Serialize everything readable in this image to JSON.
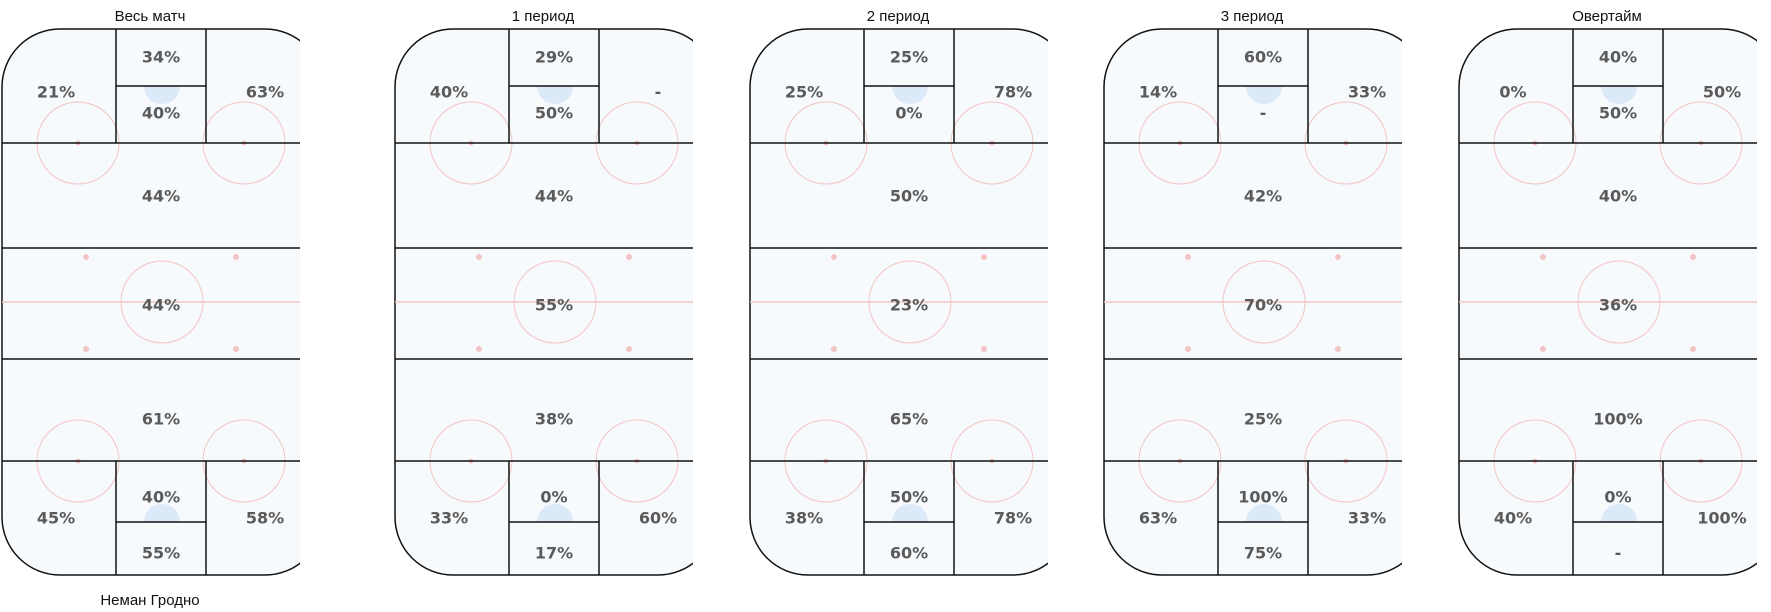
{
  "team": "Неман Гродно",
  "rinks": [
    {
      "title": "Весь матч",
      "top": {
        "left": "21%",
        "upper": "34%",
        "lower": "40%",
        "right": "63%"
      },
      "zones": {
        "offensive": "44%",
        "neutral": "44%",
        "defensive": "61%"
      },
      "bottom": {
        "left": "45%",
        "upper": "40%",
        "lower": "55%",
        "right": "58%"
      }
    },
    {
      "title": "1 период",
      "top": {
        "left": "40%",
        "upper": "29%",
        "lower": "50%",
        "right": "-"
      },
      "zones": {
        "offensive": "44%",
        "neutral": "55%",
        "defensive": "38%"
      },
      "bottom": {
        "left": "33%",
        "upper": "0%",
        "lower": "17%",
        "right": "60%"
      }
    },
    {
      "title": "2 период",
      "top": {
        "left": "25%",
        "upper": "25%",
        "lower": "0%",
        "right": "78%"
      },
      "zones": {
        "offensive": "50%",
        "neutral": "23%",
        "defensive": "65%"
      },
      "bottom": {
        "left": "38%",
        "upper": "50%",
        "lower": "60%",
        "right": "78%"
      }
    },
    {
      "title": "3 период",
      "top": {
        "left": "14%",
        "upper": "60%",
        "lower": "-",
        "right": "33%"
      },
      "zones": {
        "offensive": "42%",
        "neutral": "70%",
        "defensive": "25%"
      },
      "bottom": {
        "left": "63%",
        "upper": "100%",
        "lower": "75%",
        "right": "33%"
      }
    },
    {
      "title": "Овертайм",
      "top": {
        "left": "0%",
        "upper": "40%",
        "lower": "50%",
        "right": "50%"
      },
      "zones": {
        "offensive": "40%",
        "neutral": "36%",
        "defensive": "100%"
      },
      "bottom": {
        "left": "40%",
        "upper": "0%",
        "lower": "-",
        "right": "100%"
      }
    }
  ],
  "colors": {
    "ice": "#f7fafd",
    "line": "#111111",
    "marking": "#f2c4c4",
    "crease": "#dbe9f8",
    "text": "#5a5a5a"
  }
}
